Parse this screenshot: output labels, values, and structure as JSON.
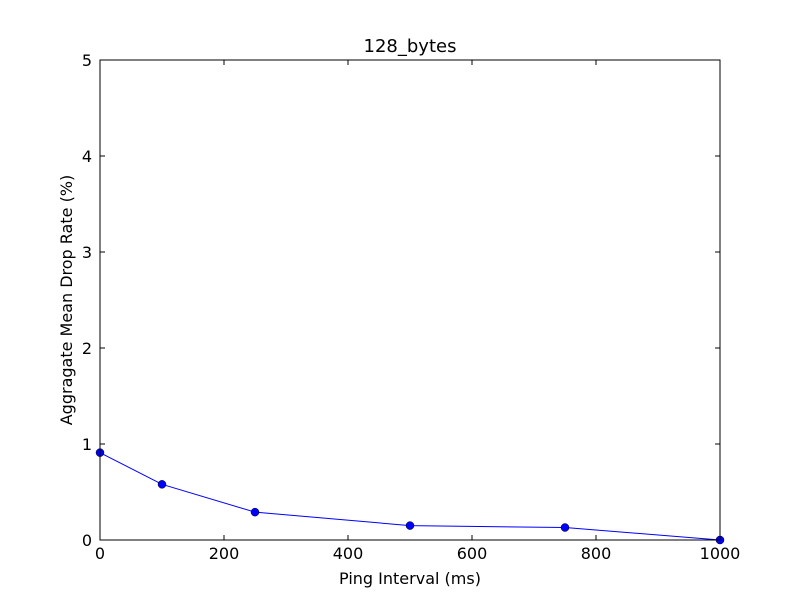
{
  "chart_data": {
    "type": "line",
    "title": "128_bytes",
    "xlabel": "Ping Interval (ms)",
    "ylabel": "Aggragate Mean Drop Rate (%)",
    "xlim": [
      0,
      1000
    ],
    "ylim": [
      0,
      5
    ],
    "x_ticks": [
      "0",
      "200",
      "400",
      "600",
      "800",
      "1000"
    ],
    "y_ticks": [
      "0",
      "1",
      "2",
      "3",
      "4",
      "5"
    ],
    "grid": false,
    "colors": {
      "series": "#0000ff"
    },
    "series": [
      {
        "x": [
          0,
          100,
          250,
          500,
          750,
          1000
        ],
        "values": [
          0.91,
          0.58,
          0.29,
          0.15,
          0.13,
          0.0
        ]
      }
    ]
  }
}
